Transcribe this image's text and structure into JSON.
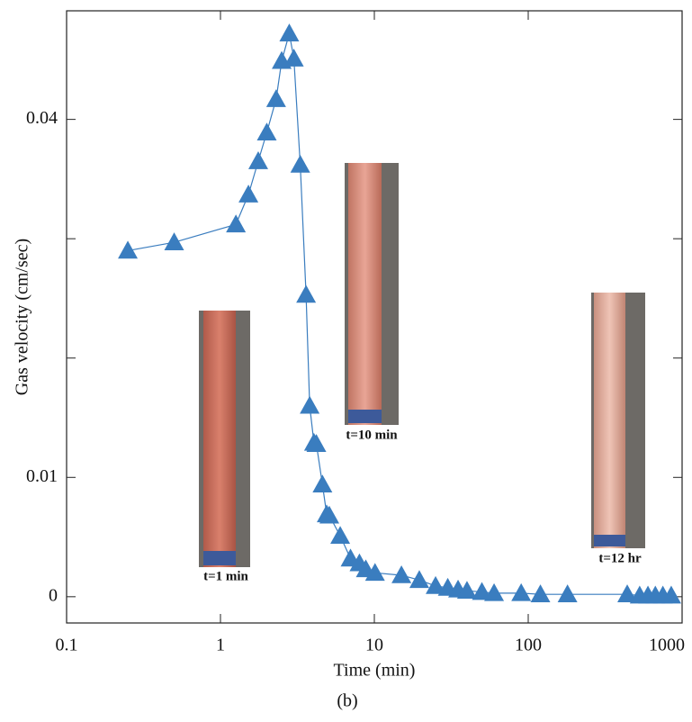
{
  "chart_data": {
    "type": "line",
    "x_label": "Time (min)",
    "y_label": "Gas velocity (cm/sec)",
    "caption": "(b)",
    "annotations": [
      "t=1 min",
      "t=10 min",
      "t=12 hr"
    ],
    "x": [
      0.25,
      0.5,
      1.26,
      1.52,
      1.76,
      2.0,
      2.3,
      2.5,
      2.8,
      3.0,
      3.3,
      3.6,
      3.8,
      4.05,
      4.2,
      4.6,
      4.9,
      5.1,
      6.0,
      7.0,
      8.0,
      8.8,
      10.1,
      15,
      19.6,
      25,
      30,
      35,
      40,
      50,
      60,
      90,
      120,
      180,
      440,
      530,
      600,
      670,
      750,
      850
    ],
    "series": [
      {
        "color": "#3a7dbf",
        "values": [
          0.029,
          0.0297,
          0.0312,
          0.0337,
          0.0365,
          0.0389,
          0.0417,
          0.0449,
          0.0472,
          0.0451,
          0.0362,
          0.0253,
          0.016,
          0.0129,
          0.0128,
          0.0094,
          0.0069,
          0.0068,
          0.0051,
          0.0032,
          0.0028,
          0.0023,
          0.002,
          0.0018,
          0.0014,
          0.0009,
          0.00075,
          0.0006,
          0.0005,
          0.0004,
          0.0003,
          0.0003,
          0.0002,
          0.0002,
          0.0002,
          0.0001,
          0.0001,
          0.0001,
          0.0001,
          0.0001
        ]
      }
    ],
    "xscale": "log",
    "xlim": [
      0.1,
      1000
    ],
    "xticks": [
      0.1,
      1,
      10,
      100,
      1000
    ],
    "ylim": [
      -0.0022,
      0.0491
    ],
    "yticks": [
      0,
      0.01,
      0.04
    ],
    "yminorticks": [
      0.02,
      0.03
    ]
  }
}
